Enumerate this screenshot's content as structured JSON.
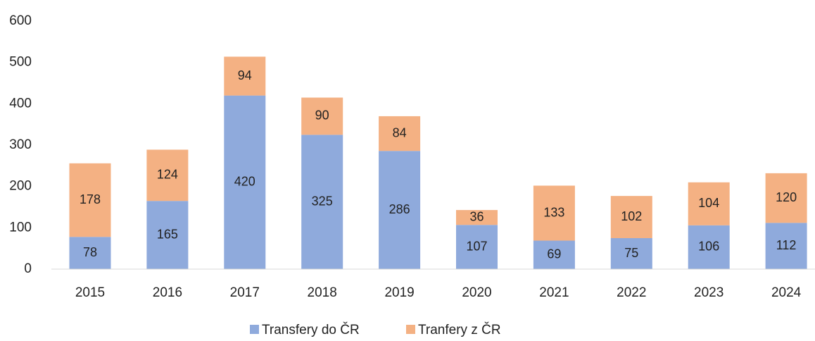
{
  "chart_data": {
    "type": "stacked_bar",
    "categories": [
      "2015",
      "2016",
      "2017",
      "2018",
      "2019",
      "2020",
      "2021",
      "2022",
      "2023",
      "2024"
    ],
    "series": [
      {
        "name": "Transfery do ČR",
        "color": "#8faadc",
        "values": [
          78,
          165,
          420,
          325,
          286,
          107,
          69,
          75,
          106,
          112
        ]
      },
      {
        "name": "Tranfery z ČR",
        "color": "#f4b183",
        "values": [
          178,
          124,
          94,
          90,
          84,
          36,
          133,
          102,
          104,
          120
        ]
      }
    ],
    "ylim": [
      0,
      600
    ],
    "yticks": [
      0,
      100,
      200,
      300,
      400,
      500,
      600
    ],
    "grid": false,
    "legend": "bottom"
  }
}
